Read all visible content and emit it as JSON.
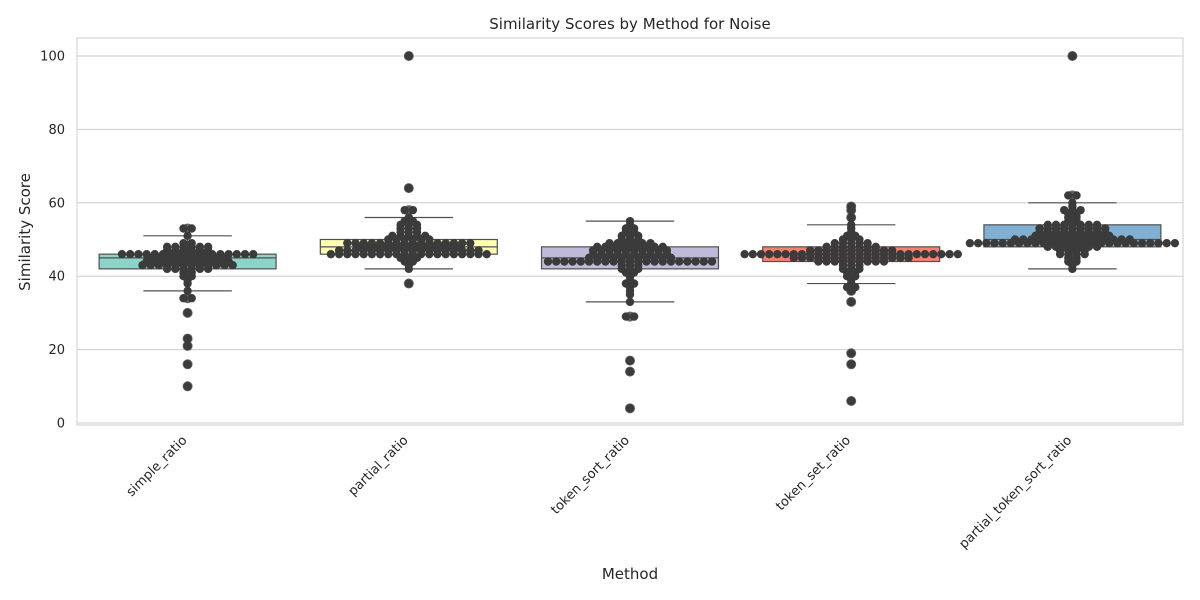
{
  "chart_data": {
    "type": "box",
    "title": "Similarity Scores by Method for Noise",
    "xlabel": "Method",
    "ylabel": "Similarity Score",
    "ylim": [
      0,
      105
    ],
    "yticks": [
      0,
      20,
      40,
      60,
      80,
      100
    ],
    "grid": "horizontal",
    "legend": "none",
    "categories": [
      "simple_ratio",
      "partial_ratio",
      "token_sort_ratio",
      "token_set_ratio",
      "partial_token_sort_ratio"
    ],
    "series": [
      {
        "category": "simple_ratio",
        "color": "#8dd3c7",
        "box": {
          "whisker_low": 36,
          "q1": 42,
          "median": 45,
          "q3": 46,
          "whisker_high": 51
        },
        "outliers": [
          34,
          30,
          23,
          21,
          16,
          10,
          53
        ],
        "points": [
          46,
          46,
          46,
          46,
          46,
          46,
          46,
          46,
          46,
          46,
          46,
          46,
          46,
          46,
          46,
          46,
          46,
          45,
          45,
          45,
          45,
          45,
          45,
          45,
          45,
          45,
          45,
          44,
          44,
          44,
          44,
          44,
          44,
          44,
          44,
          44,
          44,
          44,
          43,
          43,
          43,
          43,
          43,
          43,
          43,
          43,
          43,
          43,
          43,
          43,
          42,
          42,
          42,
          42,
          42,
          42,
          47,
          47,
          47,
          47,
          47,
          47,
          48,
          48,
          48,
          48,
          48,
          48,
          49,
          49,
          41,
          41,
          40,
          40,
          39,
          38,
          36,
          34,
          34,
          30,
          23,
          21,
          16,
          10,
          51,
          53,
          53
        ]
      },
      {
        "category": "partial_ratio",
        "color": "#ffffb3",
        "box": {
          "whisker_low": 42,
          "q1": 46,
          "median": 48,
          "q3": 50,
          "whisker_high": 56
        },
        "outliers": [
          38,
          58,
          64,
          100
        ],
        "points": [
          46,
          46,
          46,
          46,
          46,
          46,
          46,
          46,
          46,
          46,
          46,
          46,
          46,
          46,
          46,
          46,
          46,
          46,
          46,
          46,
          47,
          47,
          47,
          47,
          47,
          47,
          47,
          47,
          47,
          47,
          47,
          47,
          47,
          47,
          47,
          47,
          47,
          47,
          48,
          48,
          48,
          48,
          48,
          48,
          48,
          48,
          48,
          48,
          48,
          48,
          48,
          49,
          49,
          49,
          49,
          49,
          49,
          49,
          49,
          49,
          49,
          49,
          49,
          49,
          49,
          49,
          49,
          50,
          50,
          50,
          50,
          50,
          50,
          51,
          51,
          51,
          51,
          51,
          52,
          52,
          52,
          53,
          53,
          53,
          54,
          54,
          54,
          55,
          55,
          56,
          45,
          45,
          45,
          44,
          44,
          43,
          42,
          38,
          58,
          58,
          64,
          100
        ]
      },
      {
        "category": "token_sort_ratio",
        "color": "#bebada",
        "box": {
          "whisker_low": 33,
          "q1": 42,
          "median": 45,
          "q3": 48,
          "whisker_high": 55
        },
        "outliers": [
          29,
          29,
          17,
          14,
          4
        ],
        "points": [
          44,
          44,
          44,
          44,
          44,
          44,
          44,
          44,
          44,
          44,
          44,
          44,
          44,
          44,
          44,
          44,
          44,
          44,
          44,
          44,
          44,
          45,
          45,
          45,
          45,
          45,
          45,
          45,
          45,
          45,
          45,
          45,
          46,
          46,
          46,
          46,
          46,
          46,
          46,
          46,
          46,
          46,
          47,
          47,
          47,
          47,
          47,
          47,
          47,
          47,
          47,
          47,
          48,
          48,
          48,
          48,
          48,
          48,
          48,
          48,
          48,
          49,
          49,
          49,
          49,
          49,
          49,
          50,
          50,
          50,
          51,
          51,
          51,
          52,
          52,
          53,
          53,
          54,
          55,
          43,
          43,
          43,
          42,
          42,
          42,
          41,
          41,
          40,
          39,
          38,
          38,
          37,
          36,
          35,
          33,
          29,
          29,
          17,
          14,
          4
        ]
      },
      {
        "category": "token_set_ratio",
        "color": "#fb8072",
        "box": {
          "whisker_low": 38,
          "q1": 44,
          "median": 46,
          "q3": 48,
          "whisker_high": 54
        },
        "outliers": [
          37,
          37,
          36,
          33,
          19,
          16,
          6,
          56,
          58,
          59
        ],
        "points": [
          46,
          46,
          46,
          46,
          46,
          46,
          46,
          46,
          46,
          46,
          46,
          46,
          46,
          46,
          46,
          46,
          46,
          46,
          46,
          46,
          46,
          46,
          46,
          46,
          46,
          46,
          46,
          45,
          45,
          45,
          45,
          45,
          45,
          45,
          45,
          45,
          45,
          45,
          45,
          45,
          45,
          45,
          47,
          47,
          47,
          47,
          47,
          47,
          47,
          47,
          47,
          47,
          47,
          44,
          44,
          44,
          44,
          44,
          44,
          44,
          44,
          44,
          48,
          48,
          48,
          48,
          48,
          48,
          48,
          49,
          49,
          49,
          49,
          49,
          50,
          50,
          50,
          43,
          43,
          43,
          42,
          42,
          42,
          41,
          41,
          40,
          40,
          39,
          38,
          51,
          51,
          52,
          53,
          54,
          37,
          37,
          36,
          33,
          19,
          16,
          6,
          56,
          58,
          59
        ]
      },
      {
        "category": "partial_token_sort_ratio",
        "color": "#80b1d3",
        "box": {
          "whisker_low": 42,
          "q1": 48,
          "median": 50,
          "q3": 54,
          "whisker_high": 60
        },
        "outliers": [
          62,
          62,
          100
        ],
        "points": [
          49,
          49,
          49,
          49,
          49,
          49,
          49,
          49,
          49,
          49,
          49,
          49,
          49,
          49,
          49,
          49,
          49,
          49,
          49,
          49,
          49,
          49,
          49,
          49,
          49,
          49,
          50,
          50,
          50,
          50,
          50,
          50,
          50,
          50,
          50,
          50,
          50,
          50,
          50,
          50,
          50,
          51,
          51,
          51,
          51,
          51,
          51,
          51,
          51,
          51,
          51,
          52,
          52,
          52,
          52,
          52,
          52,
          52,
          52,
          52,
          53,
          53,
          53,
          53,
          53,
          53,
          53,
          53,
          53,
          54,
          54,
          54,
          54,
          54,
          54,
          54,
          48,
          48,
          48,
          48,
          48,
          48,
          48,
          47,
          47,
          47,
          47,
          46,
          46,
          46,
          46,
          45,
          45,
          44,
          44,
          43,
          42,
          55,
          55,
          56,
          56,
          57,
          57,
          58,
          58,
          58,
          59,
          60,
          62,
          62,
          100
        ]
      }
    ]
  }
}
